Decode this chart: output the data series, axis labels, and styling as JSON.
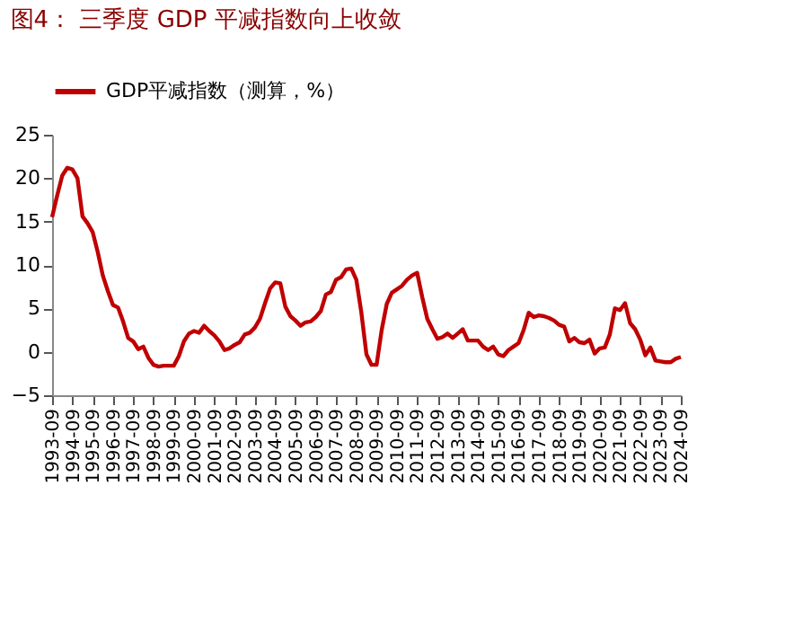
{
  "chart_data": {
    "type": "line",
    "title": "图4：  三季度 GDP 平减指数向上收敛",
    "categories": [
      "1993-09",
      null,
      null,
      null,
      "1994-09",
      null,
      null,
      null,
      "1995-09",
      null,
      null,
      null,
      "1996-09",
      null,
      null,
      null,
      "1997-09",
      null,
      null,
      null,
      "1998-09",
      null,
      null,
      null,
      "1999-09",
      null,
      null,
      null,
      "2000-09",
      null,
      null,
      null,
      "2001-09",
      null,
      null,
      null,
      "2002-09",
      null,
      null,
      null,
      "2003-09",
      null,
      null,
      null,
      "2004-09",
      null,
      null,
      null,
      "2005-09",
      null,
      null,
      null,
      "2006-09",
      null,
      null,
      null,
      "2007-09",
      null,
      null,
      null,
      "2008-09",
      null,
      null,
      null,
      "2009-09",
      null,
      null,
      null,
      "2010-09",
      null,
      null,
      null,
      "2011-09",
      null,
      null,
      null,
      "2012-09",
      null,
      null,
      null,
      "2013-09",
      null,
      null,
      null,
      "2014-09",
      null,
      null,
      null,
      "2015-09",
      null,
      null,
      null,
      "2016-09",
      null,
      null,
      null,
      "2017-09",
      null,
      null,
      null,
      "2018-09",
      null,
      null,
      null,
      "2019-09",
      null,
      null,
      null,
      "2020-09",
      null,
      null,
      null,
      "2021-09",
      null,
      null,
      null,
      "2022-09",
      null,
      null,
      null,
      "2023-09",
      null,
      null,
      null,
      "2024-09"
    ],
    "series": [
      {
        "name": "GDP平减指数（测算，%）",
        "color": "#c00000",
        "values": [
          15.5,
          18,
          20.3,
          21.2,
          21,
          20,
          15.6,
          14.8,
          13.8,
          11.5,
          8.8,
          7,
          5.4,
          5.1,
          3.5,
          1.6,
          1.2,
          0.3,
          0.6,
          -0.7,
          -1.5,
          -1.7,
          -1.6,
          -1.6,
          -1.6,
          -0.5,
          1.2,
          2.1,
          2.4,
          2.2,
          3.0,
          2.4,
          1.9,
          1.2,
          0.2,
          0.4,
          0.8,
          1.1,
          2,
          2.2,
          2.8,
          3.8,
          5.6,
          7.3,
          8,
          7.9,
          5.2,
          4.1,
          3.6,
          3.0,
          3.4,
          3.5,
          4,
          4.7,
          6.6,
          6.9,
          8.3,
          8.6,
          9.5,
          9.6,
          8.3,
          4.5,
          -0.3,
          -1.5,
          -1.5,
          2.5,
          5.5,
          6.8,
          7.2,
          7.6,
          8.3,
          8.8,
          9.1,
          6.3,
          3.8,
          2.6,
          1.5,
          1.7,
          2.1,
          1.6,
          2.1,
          2.6,
          1.3,
          1.3,
          1.3,
          0.6,
          0.2,
          0.6,
          -0.3,
          -0.5,
          0.2,
          0.6,
          1,
          2.5,
          4.5,
          4,
          4.2,
          4.1,
          3.9,
          3.6,
          3.1,
          2.9,
          1.2,
          1.6,
          1.1,
          1.0,
          1.4,
          -0.2,
          0.4,
          0.5,
          2,
          5,
          4.8,
          5.6,
          3.3,
          2.6,
          1.4,
          -0.4,
          0.5,
          -1,
          -1.1,
          -1.2,
          -1.2,
          -0.8,
          -0.6
        ]
      }
    ],
    "ylim": [
      -5,
      25
    ],
    "yticks": [
      -5,
      0,
      5,
      10,
      15,
      20,
      25
    ],
    "legend": "top",
    "grid": false,
    "marker": "none",
    "line_style": "solid"
  }
}
